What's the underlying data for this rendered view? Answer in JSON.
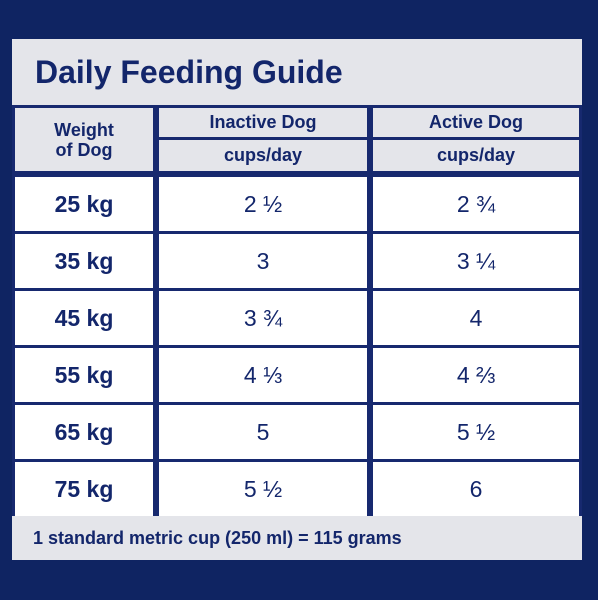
{
  "title": "Daily Feeding Guide",
  "header": {
    "weight_line1": "Weight",
    "weight_line2": "of Dog",
    "inactive": "Inactive Dog",
    "inactive_unit": "cups/day",
    "active": "Active Dog",
    "active_unit": "cups/day"
  },
  "rows": [
    {
      "weight": "25 kg",
      "inactive": "2 ½",
      "active": "2 ¾"
    },
    {
      "weight": "35 kg",
      "inactive": "3",
      "active": "3 ¼"
    },
    {
      "weight": "45 kg",
      "inactive": "3 ¾",
      "active": "4"
    },
    {
      "weight": "55 kg",
      "inactive": "4 ⅓",
      "active": "4 ⅔"
    },
    {
      "weight": "65 kg",
      "inactive": "5",
      "active": "5 ½"
    },
    {
      "weight": "75 kg",
      "inactive": "5 ½",
      "active": "6"
    }
  ],
  "footer": "1 standard metric cup (250 ml) = 115 grams",
  "colors": {
    "background": "#0f2462",
    "panel": "#e4e5ea",
    "text": "#13266b",
    "cell": "#ffffff"
  }
}
